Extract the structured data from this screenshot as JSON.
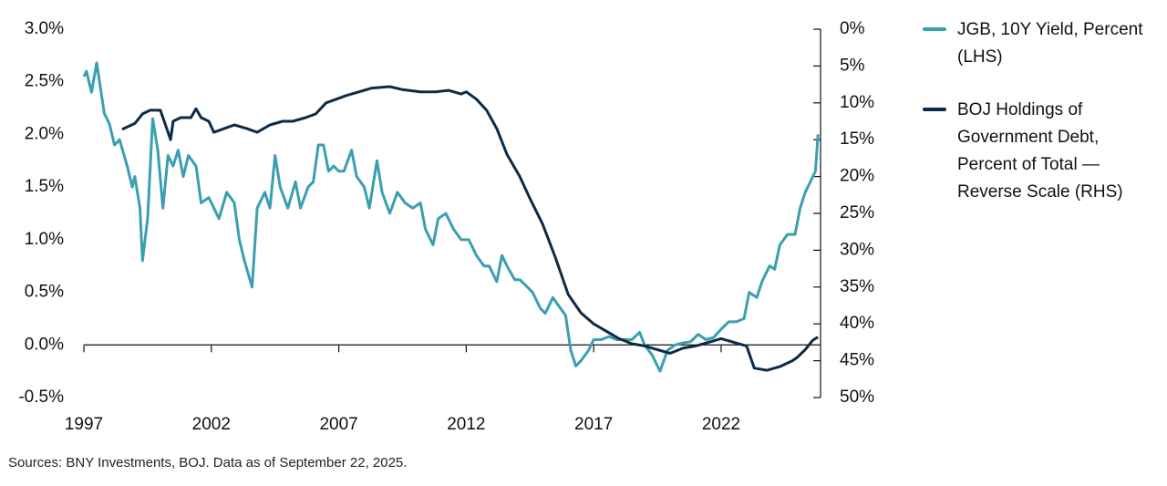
{
  "chart_data": {
    "type": "line",
    "source": "Sources: BNY Investments, BOJ. Data as of September 22, 2025.",
    "xlim": [
      1997,
      2025.9
    ],
    "xticks": [
      1997,
      2002,
      2007,
      2012,
      2017,
      2022
    ],
    "ylim": [
      -0.5,
      3.0
    ],
    "yticks": [
      {
        "value": -0.5,
        "label": "-0.5%"
      },
      {
        "value": 0.0,
        "label": "0.0%"
      },
      {
        "value": 0.5,
        "label": "0.5%"
      },
      {
        "value": 1.0,
        "label": "1.0%"
      },
      {
        "value": 1.5,
        "label": "1.5%"
      },
      {
        "value": 2.0,
        "label": "2.0%"
      },
      {
        "value": 2.5,
        "label": "2.5%"
      },
      {
        "value": 3.0,
        "label": "3.0%"
      }
    ],
    "y2lim": [
      50,
      0
    ],
    "y2ticks": [
      {
        "value": 0,
        "label": "0%"
      },
      {
        "value": 5,
        "label": "5%"
      },
      {
        "value": 10,
        "label": "10%"
      },
      {
        "value": 15,
        "label": "15%"
      },
      {
        "value": 20,
        "label": "20%"
      },
      {
        "value": 25,
        "label": "25%"
      },
      {
        "value": 30,
        "label": "30%"
      },
      {
        "value": 35,
        "label": "35%"
      },
      {
        "value": 40,
        "label": "40%"
      },
      {
        "value": 45,
        "label": "45%"
      },
      {
        "value": 50,
        "label": "50%"
      }
    ],
    "series": [
      {
        "name": "JGB, 10Y Yield, Percent (LHS)",
        "color": "#3a9fb0",
        "x": [
          1997.0,
          1997.1,
          1997.3,
          1997.5,
          1997.8,
          1998.0,
          1998.2,
          1998.4,
          1998.7,
          1998.9,
          1999.0,
          1999.2,
          1999.3,
          1999.5,
          1999.7,
          1999.9,
          2000.1,
          2000.3,
          2000.5,
          2000.7,
          2000.9,
          2001.1,
          2001.4,
          2001.6,
          2001.9,
          2002.1,
          2002.3,
          2002.6,
          2002.9,
          2003.1,
          2003.3,
          2003.6,
          2003.8,
          2004.1,
          2004.3,
          2004.5,
          2004.7,
          2005.0,
          2005.3,
          2005.5,
          2005.8,
          2006.0,
          2006.2,
          2006.4,
          2006.6,
          2006.8,
          2007.0,
          2007.2,
          2007.5,
          2007.7,
          2008.0,
          2008.2,
          2008.5,
          2008.7,
          2009.0,
          2009.3,
          2009.6,
          2009.9,
          2010.2,
          2010.4,
          2010.7,
          2010.9,
          2011.2,
          2011.5,
          2011.8,
          2012.1,
          2012.4,
          2012.7,
          2012.9,
          2013.2,
          2013.4,
          2013.6,
          2013.9,
          2014.1,
          2014.4,
          2014.6,
          2014.9,
          2015.1,
          2015.4,
          2015.6,
          2015.9,
          2016.1,
          2016.3,
          2016.5,
          2016.8,
          2017.0,
          2017.3,
          2017.6,
          2017.9,
          2018.2,
          2018.5,
          2018.8,
          2019.0,
          2019.3,
          2019.6,
          2019.9,
          2020.2,
          2020.5,
          2020.8,
          2021.1,
          2021.4,
          2021.7,
          2022.0,
          2022.3,
          2022.6,
          2022.9,
          2023.1,
          2023.4,
          2023.6,
          2023.9,
          2024.1,
          2024.3,
          2024.6,
          2024.9,
          2025.1,
          2025.3,
          2025.5,
          2025.7,
          2025.8
        ],
        "values": [
          2.55,
          2.6,
          2.4,
          2.68,
          2.2,
          2.1,
          1.9,
          1.95,
          1.7,
          1.5,
          1.6,
          1.3,
          0.8,
          1.2,
          2.15,
          1.85,
          1.3,
          1.8,
          1.7,
          1.85,
          1.6,
          1.8,
          1.7,
          1.35,
          1.4,
          1.3,
          1.2,
          1.45,
          1.35,
          1.0,
          0.8,
          0.55,
          1.3,
          1.45,
          1.3,
          1.8,
          1.5,
          1.3,
          1.55,
          1.3,
          1.5,
          1.55,
          1.9,
          1.9,
          1.65,
          1.7,
          1.65,
          1.65,
          1.85,
          1.6,
          1.5,
          1.3,
          1.75,
          1.45,
          1.25,
          1.45,
          1.35,
          1.3,
          1.35,
          1.1,
          0.95,
          1.2,
          1.25,
          1.1,
          1.0,
          1.0,
          0.85,
          0.75,
          0.75,
          0.6,
          0.85,
          0.75,
          0.62,
          0.62,
          0.55,
          0.5,
          0.35,
          0.3,
          0.45,
          0.38,
          0.28,
          -0.05,
          -0.2,
          -0.15,
          -0.05,
          0.05,
          0.05,
          0.08,
          0.05,
          0.05,
          0.05,
          0.12,
          0.0,
          -0.1,
          -0.25,
          -0.05,
          0.0,
          0.02,
          0.03,
          0.1,
          0.05,
          0.07,
          0.15,
          0.22,
          0.22,
          0.25,
          0.5,
          0.45,
          0.6,
          0.75,
          0.72,
          0.95,
          1.05,
          1.05,
          1.3,
          1.45,
          1.55,
          1.65,
          2.0
        ]
      },
      {
        "name": "BOJ Holdings of Government Debt, Percent of Total — Reverse Scale (RHS)",
        "color": "#0d2b45",
        "axis": "y2",
        "x": [
          1998.5,
          1999.0,
          1999.3,
          1999.6,
          2000.0,
          2000.2,
          2000.4,
          2000.5,
          2000.8,
          2001.2,
          2001.4,
          2001.6,
          2001.9,
          2002.1,
          2002.5,
          2002.9,
          2003.4,
          2003.8,
          2004.3,
          2004.8,
          2005.2,
          2005.7,
          2006.1,
          2006.5,
          2006.9,
          2007.3,
          2007.8,
          2008.3,
          2009.0,
          2009.5,
          2010.2,
          2010.8,
          2011.3,
          2011.8,
          2012.0,
          2012.4,
          2012.8,
          2013.2,
          2013.6,
          2014.1,
          2014.5,
          2015.0,
          2015.5,
          2016.0,
          2016.5,
          2017.0,
          2017.5,
          2018.0,
          2018.5,
          2019.0,
          2019.5,
          2020.0,
          2020.5,
          2021.0,
          2021.5,
          2022.0,
          2022.5,
          2023.0,
          2023.3,
          2023.8,
          2024.3,
          2024.8,
          2025.0,
          2025.3,
          2025.6,
          2025.8
        ],
        "values": [
          13.6,
          12.8,
          11.5,
          11.0,
          11.0,
          13.0,
          15.0,
          12.5,
          12.0,
          12.0,
          10.8,
          12.0,
          12.5,
          14.0,
          13.5,
          13.0,
          13.5,
          14.0,
          13.0,
          12.5,
          12.5,
          12.0,
          11.5,
          10.0,
          9.5,
          9.0,
          8.5,
          8.0,
          7.8,
          8.2,
          8.5,
          8.5,
          8.3,
          8.8,
          8.5,
          9.5,
          11.0,
          13.5,
          17.0,
          20.0,
          23.0,
          26.5,
          31.0,
          36.0,
          38.5,
          40.0,
          41.0,
          42.0,
          42.7,
          43.0,
          43.5,
          44.0,
          43.3,
          43.0,
          42.5,
          42.0,
          42.5,
          43.0,
          46.0,
          46.3,
          45.8,
          45.0,
          44.5,
          43.5,
          42.2,
          41.8
        ]
      }
    ]
  }
}
